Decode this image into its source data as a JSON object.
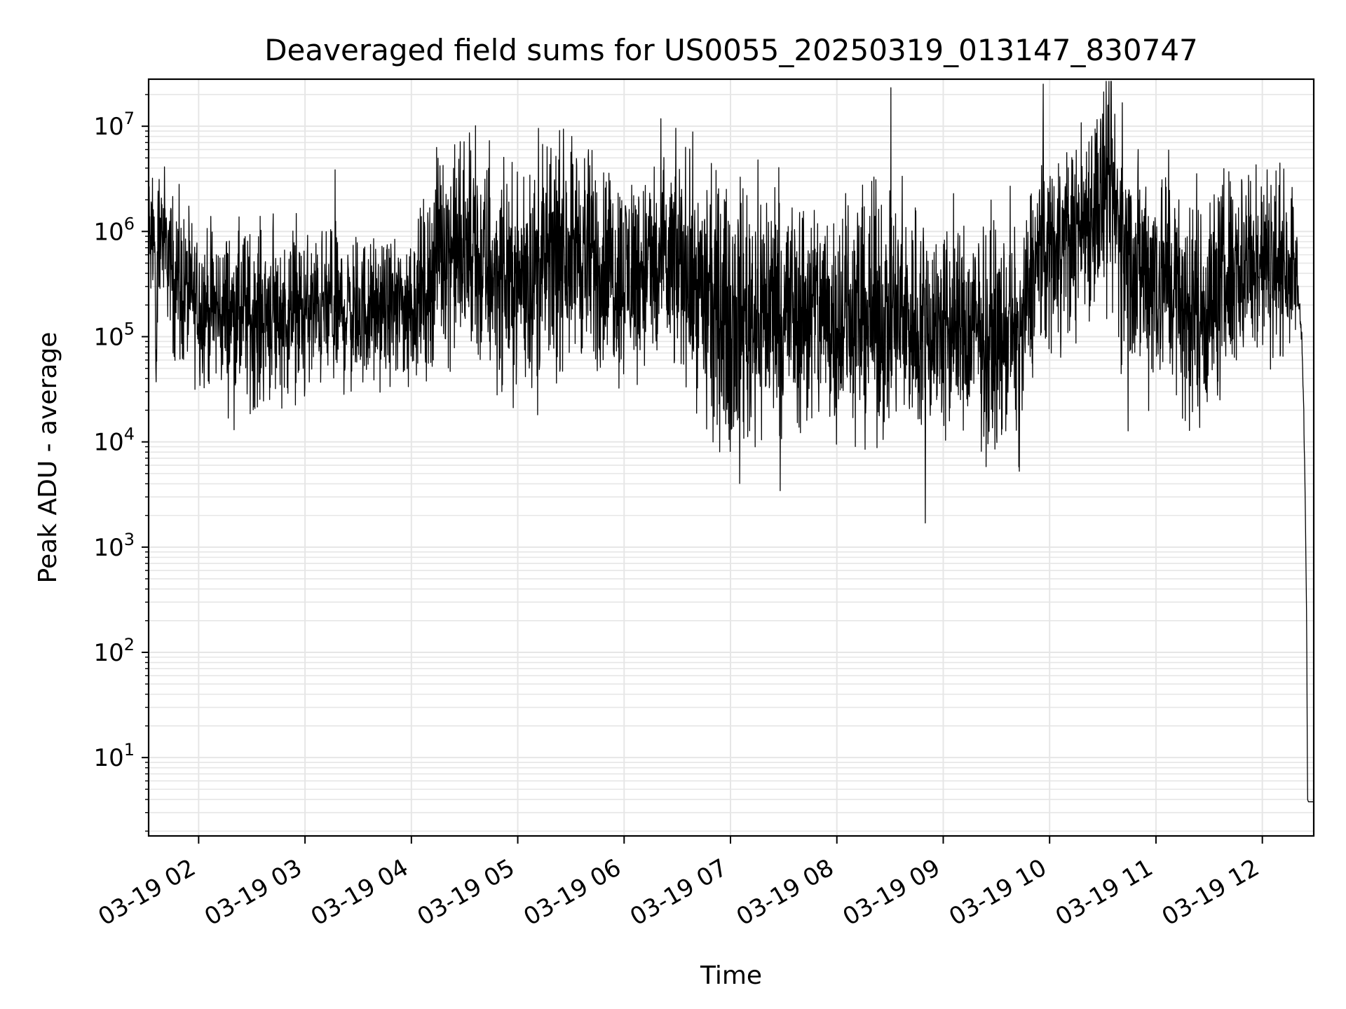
{
  "chart_data": {
    "type": "line",
    "title": "Deaveraged field sums for US0055_20250319_013147_830747",
    "xlabel": "Time",
    "ylabel": "Peak ADU - average",
    "y_scale": "log",
    "ylim": [
      1.8,
      28000000
    ],
    "xlim": [
      "2025-03-19 01:31:47",
      "2025-03-19 12:29:00"
    ],
    "x_ticks": [
      "2025-03-19 02:00",
      "2025-03-19 03:00",
      "2025-03-19 04:00",
      "2025-03-19 05:00",
      "2025-03-19 06:00",
      "2025-03-19 07:00",
      "2025-03-19 08:00",
      "2025-03-19 09:00",
      "2025-03-19 10:00",
      "2025-03-19 11:00",
      "2025-03-19 12:00"
    ],
    "x_tick_labels": [
      "03-19 02",
      "03-19 03",
      "03-19 04",
      "03-19 05",
      "03-19 06",
      "03-19 07",
      "03-19 08",
      "03-19 09",
      "03-19 10",
      "03-19 11",
      "03-19 12"
    ],
    "y_ticks": [
      10,
      100,
      1000,
      10000,
      100000,
      1000000,
      10000000
    ],
    "y_tick_labels": [
      {
        "base": "10",
        "exp": "1"
      },
      {
        "base": "10",
        "exp": "2"
      },
      {
        "base": "10",
        "exp": "3"
      },
      {
        "base": "10",
        "exp": "4"
      },
      {
        "base": "10",
        "exp": "5"
      },
      {
        "base": "10",
        "exp": "6"
      },
      {
        "base": "10",
        "exp": "7"
      }
    ],
    "grid": true,
    "line_color": "#000000",
    "grid_color": "#e6e6e6",
    "series": [
      {
        "x": [
          "2025-03-19 01:31:47",
          "2025-03-19 01:33:00",
          "2025-03-19 01:35:00",
          "2025-03-19 01:36:00",
          "2025-03-19 01:37:00",
          "2025-03-19 01:38:00",
          "2025-03-19 01:40:00",
          "2025-03-19 01:42:00",
          "2025-03-19 01:44:00",
          "2025-03-19 01:46:00",
          "2025-03-19 01:50:00",
          "2025-03-19 01:55:00",
          "2025-03-19 02:00:00",
          "2025-03-19 02:10:00",
          "2025-03-19 02:20:00",
          "2025-03-19 02:30:00",
          "2025-03-19 02:40:00",
          "2025-03-19 02:50:00",
          "2025-03-19 03:00:00",
          "2025-03-19 03:15:00",
          "2025-03-19 03:30:00",
          "2025-03-19 03:45:00",
          "2025-03-19 04:00:00",
          "2025-03-19 04:10:00",
          "2025-03-19 04:15:00",
          "2025-03-19 04:20:00",
          "2025-03-19 04:30:00",
          "2025-03-19 04:45:00",
          "2025-03-19 05:00:00",
          "2025-03-19 05:20:00",
          "2025-03-19 05:30:00",
          "2025-03-19 05:45:00",
          "2025-03-19 06:00:00",
          "2025-03-19 06:20:00",
          "2025-03-19 06:35:00",
          "2025-03-19 06:42:00",
          "2025-03-19 06:50:00",
          "2025-03-19 07:00:00",
          "2025-03-19 07:20:00",
          "2025-03-19 07:40:00",
          "2025-03-19 08:00:00",
          "2025-03-19 08:30:00",
          "2025-03-19 08:45:00",
          "2025-03-19 09:00:00",
          "2025-03-19 09:20:00",
          "2025-03-19 09:35:00",
          "2025-03-19 09:45:00",
          "2025-03-19 09:50:00",
          "2025-03-19 10:00:00",
          "2025-03-19 10:15:00",
          "2025-03-19 10:25:00",
          "2025-03-19 10:35:00",
          "2025-03-19 10:45:00",
          "2025-03-19 11:00:00",
          "2025-03-19 11:10:00",
          "2025-03-19 11:15:00",
          "2025-03-19 11:30:00",
          "2025-03-19 11:45:00",
          "2025-03-19 12:00:00",
          "2025-03-19 12:10:00",
          "2025-03-19 12:18:00",
          "2025-03-19 12:20:00",
          "2025-03-19 12:22:00",
          "2025-03-19 12:23:00",
          "2025-03-19 12:24:00",
          "2025-03-19 12:25:00",
          "2025-03-19 12:25:30",
          "2025-03-19 12:26:00",
          "2025-03-19 12:29:00"
        ],
        "y": [
          1000000,
          700000,
          1100000,
          35000,
          800000,
          1200000,
          900000,
          700000,
          500000,
          400000,
          300000,
          250000,
          200000,
          180000,
          160000,
          150000,
          180000,
          150000,
          170000,
          180000,
          170000,
          180000,
          200000,
          300000,
          800000,
          700000,
          600000,
          400000,
          350000,
          500000,
          800000,
          450000,
          400000,
          450000,
          500000,
          300000,
          200000,
          160000,
          200000,
          180000,
          160000,
          160000,
          140000,
          120000,
          110000,
          100000,
          110000,
          400000,
          700000,
          1000000,
          1800000,
          2000000,
          500000,
          400000,
          350000,
          150000,
          200000,
          500000,
          500000,
          500000,
          500000,
          300000,
          120000,
          40000,
          5000,
          200,
          4,
          3.8,
          3.8
        ],
        "noise": [
          0.3,
          0.3,
          0.3,
          0.1,
          0.3,
          0.35,
          0.3,
          0.3,
          0.3,
          0.35,
          0.35,
          0.35,
          0.35,
          0.35,
          0.4,
          0.4,
          0.4,
          0.35,
          0.35,
          0.35,
          0.35,
          0.3,
          0.35,
          0.4,
          0.45,
          0.45,
          0.5,
          0.5,
          0.45,
          0.5,
          0.5,
          0.5,
          0.45,
          0.5,
          0.5,
          0.5,
          0.55,
          0.6,
          0.6,
          0.55,
          0.55,
          0.55,
          0.55,
          0.5,
          0.5,
          0.45,
          0.45,
          0.45,
          0.45,
          0.45,
          0.5,
          0.55,
          0.5,
          0.55,
          0.5,
          0.5,
          0.5,
          0.5,
          0.45,
          0.4,
          0.35,
          0.2,
          0.1,
          0.05,
          0.05,
          0.0,
          0.0,
          0.0,
          0.0
        ]
      }
    ]
  }
}
